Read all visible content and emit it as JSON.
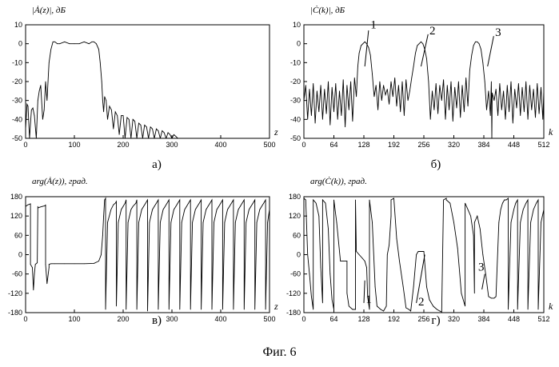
{
  "figure": {
    "caption": "Фиг. 6"
  },
  "chart_data": [
    {
      "id": "a",
      "type": "line",
      "panel_label": "a)",
      "title": "",
      "ylabel": "|Ȧ(z)|, дБ",
      "xlabel": "z",
      "xlim": [
        0,
        500
      ],
      "ylim": [
        -50,
        10
      ],
      "xticks": [
        0,
        100,
        200,
        300,
        400,
        500
      ],
      "yticks": [
        10,
        0,
        -10,
        -20,
        -30,
        -40,
        -50
      ],
      "grid": false,
      "series": [
        {
          "x": [
            0,
            3,
            5,
            8,
            12,
            15,
            18,
            22,
            25,
            28,
            31,
            35,
            38,
            41,
            44,
            48,
            52,
            56,
            60,
            65,
            70,
            80,
            90,
            100,
            110,
            120,
            130,
            136,
            140,
            145,
            150,
            153,
            156,
            158,
            160,
            162,
            165,
            168,
            172,
            176,
            180,
            184,
            188,
            192,
            196,
            200,
            204,
            208,
            212,
            216,
            220,
            224,
            228,
            232,
            236,
            240,
            244,
            248,
            252,
            256,
            260,
            264,
            268,
            272,
            276,
            280,
            284,
            288,
            292,
            296,
            300,
            304,
            308,
            312
          ],
          "y": [
            -45,
            -32,
            -33,
            -50,
            -35,
            -34,
            -38,
            -50,
            -30,
            -25,
            -22,
            -40,
            -35,
            -20,
            -30,
            -10,
            -3,
            1,
            1,
            0,
            0,
            1,
            0,
            0,
            0,
            1,
            0,
            1,
            1,
            0,
            -3,
            -10,
            -20,
            -30,
            -36,
            -28,
            -30,
            -40,
            -33,
            -35,
            -45,
            -36,
            -38,
            -48,
            -38,
            -38,
            -50,
            -39,
            -40,
            -50,
            -40,
            -41,
            -50,
            -42,
            -43,
            -50,
            -43,
            -44,
            -50,
            -44,
            -45,
            -50,
            -45,
            -46,
            -50,
            -46,
            -47,
            -50,
            -47,
            -48,
            -50,
            -48,
            -49,
            -50
          ]
        }
      ]
    },
    {
      "id": "b",
      "type": "line",
      "panel_label": "б)",
      "title": "",
      "ylabel": "|Ċ(k)|, дБ",
      "xlabel": "k",
      "xlim": [
        0,
        512
      ],
      "ylim": [
        -50,
        10
      ],
      "xticks": [
        0,
        64,
        128,
        192,
        256,
        320,
        384,
        448,
        512
      ],
      "yticks": [
        10,
        0,
        -10,
        -20,
        -30,
        -40,
        -50
      ],
      "grid": false,
      "peak_labels": [
        "1",
        "2",
        "3"
      ],
      "series": [
        {
          "x": [
            0,
            4,
            8,
            12,
            16,
            20,
            24,
            28,
            32,
            36,
            40,
            44,
            48,
            52,
            56,
            60,
            64,
            68,
            72,
            76,
            80,
            84,
            88,
            92,
            96,
            100,
            104,
            108,
            112,
            115,
            118,
            122,
            126,
            130,
            134,
            138,
            142,
            146,
            150,
            154,
            158,
            162,
            166,
            170,
            174,
            178,
            182,
            186,
            190,
            194,
            198,
            202,
            206,
            210,
            214,
            218,
            222,
            226,
            230,
            234,
            238,
            242,
            246,
            250,
            254,
            258,
            262,
            266,
            270,
            274,
            278,
            282,
            286,
            290,
            294,
            298,
            302,
            306,
            310,
            314,
            318,
            322,
            326,
            330,
            334,
            338,
            342,
            346,
            350,
            354,
            358,
            362,
            366,
            370,
            374,
            378,
            382,
            386,
            390,
            394,
            398,
            400,
            401,
            402,
            406,
            410,
            414,
            418,
            422,
            426,
            430,
            434,
            438,
            442,
            446,
            450,
            454,
            458,
            462,
            466,
            470,
            474,
            478,
            482,
            486,
            490,
            494,
            498,
            502,
            506,
            510,
            512
          ],
          "y": [
            -30,
            -22,
            -40,
            -24,
            -38,
            -21,
            -42,
            -25,
            -36,
            -22,
            -40,
            -24,
            -37,
            -20,
            -43,
            -23,
            -36,
            -21,
            -40,
            -25,
            -38,
            -19,
            -44,
            -22,
            -35,
            -20,
            -41,
            -18,
            -28,
            -12,
            -5,
            -1,
            0,
            1,
            0,
            -2,
            -6,
            -16,
            -28,
            -22,
            -35,
            -20,
            -30,
            -22,
            -27,
            -24,
            -32,
            -20,
            -28,
            -18,
            -33,
            -22,
            -36,
            -20,
            -38,
            -19,
            -30,
            -25,
            -18,
            -12,
            -5,
            -1,
            0,
            1,
            0,
            -3,
            -8,
            -20,
            -40,
            -25,
            -35,
            -21,
            -37,
            -22,
            -30,
            -19,
            -40,
            -22,
            -35,
            -20,
            -41,
            -23,
            -34,
            -20,
            -39,
            -22,
            -36,
            -18,
            -33,
            -14,
            -6,
            -1,
            1,
            1,
            0,
            -3,
            -10,
            -20,
            -35,
            -25,
            -38,
            -20,
            -50,
            -26,
            -30,
            -24,
            -38,
            -21,
            -35,
            -25,
            -40,
            -22,
            -36,
            -20,
            -42,
            -24,
            -34,
            -21,
            -38,
            -23,
            -36,
            -20,
            -40,
            -22,
            -35,
            -24,
            -39,
            -21,
            -37,
            -23,
            -40,
            -25
          ]
        }
      ]
    },
    {
      "id": "v",
      "type": "line",
      "panel_label": "в)",
      "title": "",
      "ylabel": "arg(Ȧ(z)), град.",
      "xlabel": "z",
      "xlim": [
        0,
        500
      ],
      "ylim": [
        -180,
        180
      ],
      "xticks": [
        0,
        100,
        200,
        300,
        400,
        500
      ],
      "yticks": [
        180,
        120,
        60,
        0,
        -60,
        -120,
        -180
      ],
      "grid": false,
      "series": [
        {
          "x": [
            0,
            5,
            10,
            10,
            14,
            16,
            18,
            20,
            24,
            25,
            25,
            30,
            35,
            40,
            41,
            41,
            44,
            48,
            48,
            52,
            60,
            80,
            100,
            120,
            140,
            150,
            155,
            158,
            160,
            162,
            164,
            164,
            168,
            175,
            180,
            184,
            186,
            186,
            190,
            196,
            200,
            204,
            206,
            206,
            210,
            216,
            220,
            226,
            228,
            228,
            232,
            238,
            242,
            246,
            250,
            250,
            254,
            260,
            264,
            268,
            272,
            272,
            276,
            282,
            286,
            290,
            294,
            294,
            298,
            304,
            308,
            312,
            316,
            316,
            320,
            326,
            330,
            334,
            338,
            338,
            342,
            348,
            352,
            356,
            360,
            360,
            364,
            370,
            374,
            378,
            382,
            382,
            386,
            392,
            396,
            400,
            404,
            404,
            408,
            414,
            418,
            422,
            426,
            426,
            430,
            436,
            440,
            444,
            448,
            448,
            452,
            458,
            462,
            466,
            470,
            470,
            474,
            480,
            484,
            488,
            492,
            492,
            496,
            500
          ],
          "y": [
            150,
            155,
            158,
            -30,
            -40,
            -110,
            -60,
            -30,
            -25,
            150,
            145,
            148,
            150,
            152,
            155,
            -30,
            -90,
            -40,
            -30,
            -28,
            -28,
            -28,
            -28,
            -28,
            -27,
            -20,
            0,
            60,
            120,
            170,
            175,
            -170,
            100,
            140,
            155,
            160,
            165,
            -160,
            100,
            140,
            150,
            160,
            170,
            -170,
            100,
            140,
            150,
            160,
            170,
            -170,
            100,
            140,
            150,
            160,
            170,
            -175,
            100,
            140,
            150,
            160,
            170,
            -170,
            100,
            140,
            150,
            160,
            170,
            -170,
            100,
            140,
            150,
            160,
            170,
            -170,
            100,
            140,
            150,
            160,
            170,
            -170,
            100,
            140,
            150,
            160,
            170,
            -170,
            100,
            140,
            150,
            160,
            170,
            -170,
            100,
            140,
            150,
            160,
            170,
            -170,
            100,
            140,
            150,
            160,
            170,
            -170,
            100,
            140,
            150,
            160,
            170,
            -170,
            100,
            140,
            150,
            160,
            170,
            -170,
            100,
            140,
            150,
            160,
            170,
            -170,
            100,
            140
          ]
        }
      ]
    },
    {
      "id": "g",
      "type": "line",
      "panel_label": "г)",
      "title": "",
      "ylabel": "arg(Ċ(k)), град.",
      "xlabel": "k",
      "xlim": [
        0,
        512
      ],
      "ylim": [
        -180,
        180
      ],
      "xticks": [
        0,
        64,
        128,
        192,
        256,
        320,
        384,
        448,
        512
      ],
      "yticks": [
        180,
        120,
        60,
        0,
        -60,
        -120,
        -180
      ],
      "grid": false,
      "peak_labels": [
        "1",
        "2",
        "3"
      ],
      "series": [
        {
          "x": [
            0,
            4,
            8,
            12,
            16,
            20,
            20,
            26,
            32,
            36,
            40,
            40,
            46,
            52,
            56,
            60,
            64,
            64,
            70,
            78,
            84,
            90,
            92,
            92,
            96,
            104,
            110,
            110,
            112,
            118,
            124,
            130,
            134,
            136,
            140,
            140,
            146,
            152,
            156,
            164,
            170,
            176,
            178,
            182,
            186,
            186,
            192,
            198,
            204,
            212,
            218,
            224,
            228,
            234,
            240,
            244,
            250,
            254,
            256,
            262,
            268,
            276,
            284,
            290,
            294,
            298,
            304,
            304,
            312,
            320,
            328,
            336,
            342,
            344,
            344,
            350,
            356,
            362,
            364,
            364,
            370,
            376,
            382,
            388,
            394,
            400,
            406,
            410,
            416,
            420,
            424,
            428,
            432,
            436,
            436,
            442,
            448,
            452,
            456,
            456,
            462,
            468,
            474,
            478,
            478,
            484,
            490,
            496,
            500,
            500,
            506,
            512
          ],
          "y": [
            175,
            170,
            0,
            -60,
            -130,
            -170,
            170,
            160,
            120,
            -40,
            -150,
            170,
            160,
            80,
            -60,
            -140,
            -170,
            170,
            100,
            -20,
            -20,
            -20,
            -20,
            -120,
            -160,
            -170,
            -170,
            170,
            10,
            0,
            -10,
            -20,
            -40,
            -130,
            -170,
            170,
            100,
            -100,
            -160,
            -170,
            -175,
            -160,
            0,
            30,
            120,
            170,
            175,
            50,
            -20,
            -100,
            -165,
            -170,
            -175,
            -100,
            0,
            10,
            10,
            10,
            10,
            -100,
            -140,
            -160,
            -170,
            -175,
            -178,
            170,
            175,
            170,
            160,
            100,
            20,
            -120,
            -150,
            -160,
            160,
            140,
            120,
            60,
            -120,
            100,
            120,
            80,
            0,
            -60,
            -130,
            -135,
            -135,
            -130,
            100,
            140,
            160,
            170,
            170,
            175,
            -170,
            100,
            140,
            160,
            170,
            -170,
            100,
            140,
            160,
            170,
            -170,
            100,
            140,
            160,
            170,
            -170,
            100,
            140
          ]
        }
      ]
    }
  ]
}
